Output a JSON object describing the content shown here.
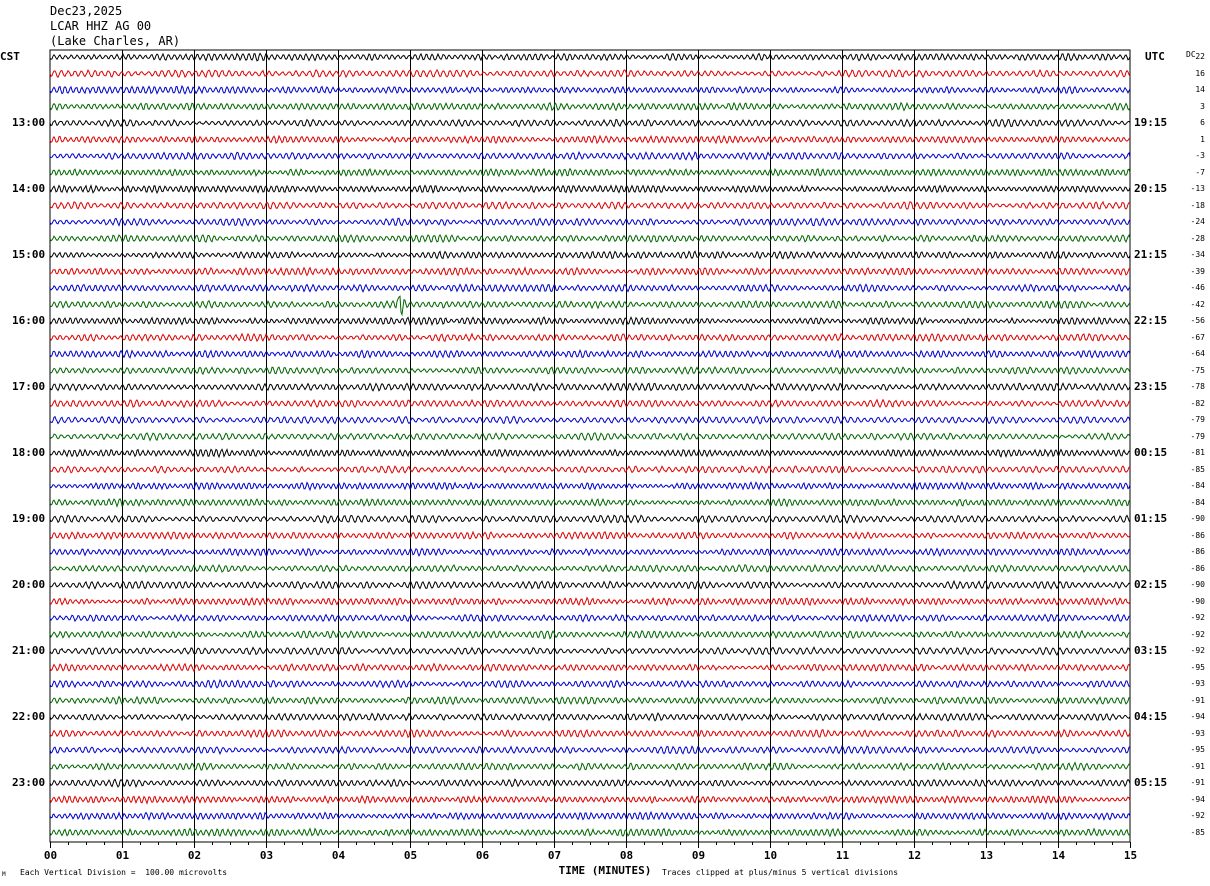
{
  "header": {
    "date": "Dec23,2025",
    "station": "LCAR HHZ AG 00",
    "location": "(Lake Charles, AR)"
  },
  "left_axis_title": "CST",
  "right_axis_title": "UTC",
  "dc_title": "DC",
  "left_hour_labels": [
    "13:00",
    "14:00",
    "15:00",
    "16:00",
    "17:00",
    "18:00",
    "19:00",
    "20:00",
    "21:00",
    "22:00",
    "23:00"
  ],
  "right_hour_labels": [
    "19:15",
    "20:15",
    "21:15",
    "22:15",
    "23:15",
    "00:15",
    "01:15",
    "02:15",
    "03:15",
    "04:15",
    "05:15"
  ],
  "dc_offsets": [
    "22",
    "16",
    "14",
    "3",
    "6",
    "1",
    "-3",
    "-7",
    "-13",
    "-18",
    "-24",
    "-28",
    "-34",
    "-39",
    "-46",
    "-42",
    "-56",
    "-67",
    "-64",
    "-75",
    "-78",
    "-82",
    "-79",
    "-79",
    "-81",
    "-85",
    "-84",
    "-84",
    "-90",
    "-86",
    "-86",
    "-86",
    "-90",
    "-90",
    "-92",
    "-92",
    "-92",
    "-95",
    "-93",
    "-91",
    "-94",
    "-93",
    "-95",
    "-91",
    "-91",
    "-94",
    "-92",
    "-85"
  ],
  "footer": {
    "vertical_division": "Each Vertical Division =  100.00 microvolts",
    "clip_note": "Traces clipped at plus/minus 5 vertical divisions",
    "corner_mark": "M"
  },
  "chart_data": {
    "type": "line",
    "title": "",
    "xlabel": "TIME (MINUTES)",
    "x_ticks": [
      "00",
      "01",
      "02",
      "03",
      "04",
      "05",
      "06",
      "07",
      "08",
      "09",
      "10",
      "11",
      "12",
      "13",
      "14",
      "15"
    ],
    "xlim": [
      0,
      15
    ],
    "trace_count": 48,
    "trace_minutes_each": 15,
    "trace_colors": [
      "#000000",
      "#dd0000",
      "#0000cc",
      "#006600"
    ],
    "grid": true,
    "events": [
      {
        "trace": 15,
        "minute": 4.85,
        "note": "spike"
      }
    ]
  }
}
